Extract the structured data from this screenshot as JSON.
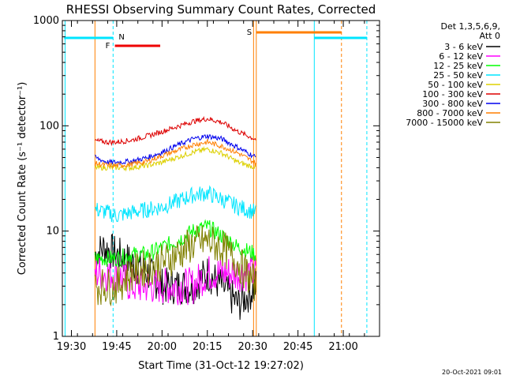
{
  "chart_data": {
    "type": "line",
    "title": "RHESSI Observing Summary Count Rates, Corrected",
    "xlabel": "Start Time (31-Oct-12 19:27:02)",
    "ylabel": "Corrected Count Rate (s⁻¹ detector⁻¹)",
    "y_scale": "log",
    "ylim": [
      1,
      1000
    ],
    "xlim_minutes": [
      19.45,
      21.2
    ],
    "x_ticks": [
      "19:30",
      "19:45",
      "20:00",
      "20:15",
      "20:30",
      "20:45",
      "21:00"
    ],
    "x_tick_hours": [
      19.5,
      19.75,
      20.0,
      20.25,
      20.5,
      20.75,
      21.0
    ],
    "y_ticks": [
      "1",
      "10",
      "100",
      "1000"
    ],
    "y_tick_values": [
      1,
      10,
      100,
      1000
    ],
    "legend_header": [
      "Det 1,3,5,6,9,",
      "Att 0"
    ],
    "legend_position": "right",
    "series": [
      {
        "name": "3 - 6 keV",
        "color": "#000000",
        "values": [
          [
            19.63,
            6
          ],
          [
            19.68,
            7
          ],
          [
            19.75,
            6
          ],
          [
            19.83,
            5
          ],
          [
            19.92,
            4
          ],
          [
            20.0,
            3
          ],
          [
            20.08,
            3
          ],
          [
            20.17,
            3
          ],
          [
            20.25,
            4
          ],
          [
            20.33,
            3
          ],
          [
            20.42,
            2
          ],
          [
            20.52,
            3
          ]
        ]
      },
      {
        "name": "6 - 12 keV",
        "color": "#ff00ff",
        "values": [
          [
            19.63,
            4
          ],
          [
            19.7,
            4
          ],
          [
            19.75,
            4
          ],
          [
            19.83,
            3
          ],
          [
            19.92,
            3
          ],
          [
            20.0,
            3
          ],
          [
            20.08,
            3
          ],
          [
            20.17,
            3
          ],
          [
            20.25,
            4
          ],
          [
            20.33,
            4
          ],
          [
            20.42,
            4
          ],
          [
            20.52,
            4
          ]
        ]
      },
      {
        "name": "12 - 25 keV",
        "color": "#00ff00",
        "values": [
          [
            19.63,
            5.5
          ],
          [
            19.7,
            5.5
          ],
          [
            19.75,
            5.5
          ],
          [
            19.83,
            6
          ],
          [
            19.92,
            6
          ],
          [
            20.0,
            7
          ],
          [
            20.08,
            8
          ],
          [
            20.17,
            10
          ],
          [
            20.25,
            11
          ],
          [
            20.33,
            9
          ],
          [
            20.42,
            7
          ],
          [
            20.52,
            6
          ]
        ]
      },
      {
        "name": "25 - 50 keV",
        "color": "#00e5ff",
        "values": [
          [
            19.63,
            16
          ],
          [
            19.7,
            15
          ],
          [
            19.75,
            14
          ],
          [
            19.83,
            15
          ],
          [
            19.92,
            16
          ],
          [
            20.0,
            17
          ],
          [
            20.08,
            19
          ],
          [
            20.17,
            22
          ],
          [
            20.25,
            23
          ],
          [
            20.33,
            20
          ],
          [
            20.42,
            17
          ],
          [
            20.52,
            15
          ]
        ]
      },
      {
        "name": "50 - 100 keV",
        "color": "#ddd000",
        "values": [
          [
            19.63,
            40
          ],
          [
            19.7,
            40
          ],
          [
            19.75,
            40
          ],
          [
            19.83,
            40
          ],
          [
            19.92,
            42
          ],
          [
            20.0,
            45
          ],
          [
            20.08,
            50
          ],
          [
            20.17,
            56
          ],
          [
            20.25,
            60
          ],
          [
            20.33,
            55
          ],
          [
            20.42,
            45
          ],
          [
            20.52,
            40
          ]
        ]
      },
      {
        "name": "100 - 300 keV",
        "color": "#dd0000",
        "values": [
          [
            19.63,
            72
          ],
          [
            19.7,
            70
          ],
          [
            19.75,
            70
          ],
          [
            19.83,
            73
          ],
          [
            19.92,
            80
          ],
          [
            20.0,
            88
          ],
          [
            20.08,
            98
          ],
          [
            20.17,
            110
          ],
          [
            20.25,
            117
          ],
          [
            20.33,
            108
          ],
          [
            20.42,
            88
          ],
          [
            20.52,
            74
          ]
        ]
      },
      {
        "name": "300 - 800 keV",
        "color": "#0000ee",
        "values": [
          [
            19.63,
            50
          ],
          [
            19.7,
            45
          ],
          [
            19.75,
            45
          ],
          [
            19.83,
            46
          ],
          [
            19.92,
            50
          ],
          [
            20.0,
            56
          ],
          [
            20.08,
            65
          ],
          [
            20.17,
            75
          ],
          [
            20.25,
            80
          ],
          [
            20.33,
            75
          ],
          [
            20.42,
            62
          ],
          [
            20.52,
            50
          ]
        ]
      },
      {
        "name": "800 - 7000 keV",
        "color": "#ff7f00",
        "values": [
          [
            19.63,
            44
          ],
          [
            19.7,
            42
          ],
          [
            19.75,
            42
          ],
          [
            19.83,
            43
          ],
          [
            19.92,
            46
          ],
          [
            20.0,
            52
          ],
          [
            20.08,
            58
          ],
          [
            20.17,
            66
          ],
          [
            20.25,
            70
          ],
          [
            20.33,
            64
          ],
          [
            20.42,
            55
          ],
          [
            20.52,
            44
          ]
        ]
      },
      {
        "name": "7000 - 15000 keV",
        "color": "#808000",
        "values": [
          [
            19.63,
            3
          ],
          [
            19.7,
            3
          ],
          [
            19.75,
            3
          ],
          [
            19.83,
            4
          ],
          [
            19.92,
            4.5
          ],
          [
            20.0,
            5
          ],
          [
            20.08,
            6
          ],
          [
            20.17,
            7.5
          ],
          [
            20.25,
            8
          ],
          [
            20.33,
            7
          ],
          [
            20.42,
            5
          ],
          [
            20.52,
            3
          ]
        ]
      }
    ],
    "annotations": [
      {
        "label": "N",
        "color": "#00e5ff"
      },
      {
        "label": "F",
        "color": "#ee0000"
      },
      {
        "label": "S",
        "color": "#ff7f00"
      }
    ],
    "footer_timestamp": "20-Oct-2021 09:01"
  }
}
